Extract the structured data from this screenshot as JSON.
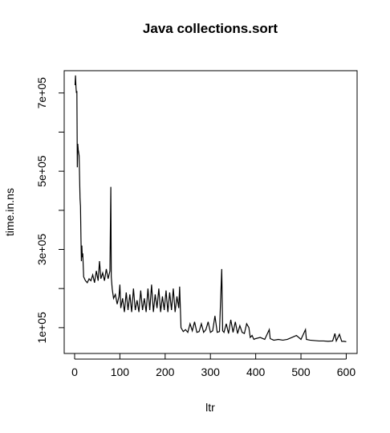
{
  "chart_data": {
    "type": "line",
    "title": "Java collections.sort",
    "xlabel": "ltr",
    "ylabel": "time.in.ns",
    "x": [
      1,
      2,
      3,
      4,
      5,
      6,
      7,
      8,
      10,
      12,
      13,
      14,
      15,
      16,
      17,
      18,
      20,
      24,
      28,
      32,
      36,
      40,
      44,
      48,
      52,
      55,
      58,
      62,
      66,
      70,
      74,
      78,
      80,
      81,
      83,
      86,
      90,
      94,
      98,
      100,
      102,
      106,
      110,
      114,
      118,
      122,
      126,
      130,
      134,
      138,
      142,
      146,
      150,
      154,
      158,
      162,
      166,
      170,
      174,
      178,
      182,
      186,
      190,
      194,
      198,
      202,
      206,
      210,
      214,
      218,
      222,
      226,
      230,
      232,
      235,
      240,
      245,
      250,
      255,
      260,
      265,
      270,
      275,
      280,
      285,
      290,
      295,
      300,
      305,
      310,
      315,
      320,
      325,
      327,
      330,
      335,
      340,
      345,
      350,
      355,
      360,
      365,
      370,
      375,
      380,
      385,
      388,
      392,
      396,
      400,
      410,
      420,
      430,
      432,
      440,
      450,
      460,
      470,
      480,
      490,
      500,
      510,
      512,
      520,
      530,
      540,
      550,
      560,
      570,
      575,
      578,
      585,
      590,
      595,
      600
    ],
    "series": [
      {
        "name": "time.in.ns",
        "color": "#000000",
        "values": [
          720000,
          745000,
          715000,
          700000,
          705000,
          510000,
          570000,
          555000,
          540000,
          430000,
          410000,
          330000,
          270000,
          310000,
          280000,
          290000,
          230000,
          220000,
          215000,
          225000,
          220000,
          235000,
          215000,
          245000,
          220000,
          270000,
          225000,
          240000,
          220000,
          250000,
          225000,
          245000,
          460000,
          230000,
          200000,
          175000,
          185000,
          160000,
          180000,
          210000,
          150000,
          175000,
          140000,
          190000,
          145000,
          185000,
          140000,
          200000,
          145000,
          170000,
          140000,
          195000,
          145000,
          175000,
          140000,
          200000,
          145000,
          210000,
          140000,
          185000,
          150000,
          200000,
          140000,
          180000,
          145000,
          195000,
          140000,
          190000,
          145000,
          200000,
          140000,
          180000,
          150000,
          205000,
          100000,
          90000,
          95000,
          88000,
          110000,
          92000,
          115000,
          88000,
          90000,
          110000,
          88000,
          95000,
          115000,
          88000,
          92000,
          130000,
          88000,
          90000,
          250000,
          92000,
          88000,
          110000,
          85000,
          120000,
          88000,
          115000,
          85000,
          105000,
          88000,
          85000,
          110000,
          100000,
          75000,
          80000,
          70000,
          72000,
          75000,
          70000,
          95000,
          72000,
          68000,
          70000,
          68000,
          70000,
          75000,
          80000,
          70000,
          95000,
          70000,
          68000,
          67000,
          66000,
          66000,
          65000,
          66000,
          85000,
          66000,
          83000,
          65000,
          65000,
          64000
        ]
      }
    ],
    "xlim": [
      -23,
      624
    ],
    "xticks": [
      0,
      100,
      200,
      300,
      400,
      500,
      600
    ],
    "ylim": [
      34000,
      757000
    ],
    "yticks": [
      {
        "value": 100000,
        "label": "1e+05"
      },
      {
        "value": 300000,
        "label": "3e+05"
      },
      {
        "value": 500000,
        "label": "5e+05"
      },
      {
        "value": 700000,
        "label": "7e+05"
      }
    ],
    "yminor_ticks": [
      200000,
      400000,
      600000
    ]
  }
}
